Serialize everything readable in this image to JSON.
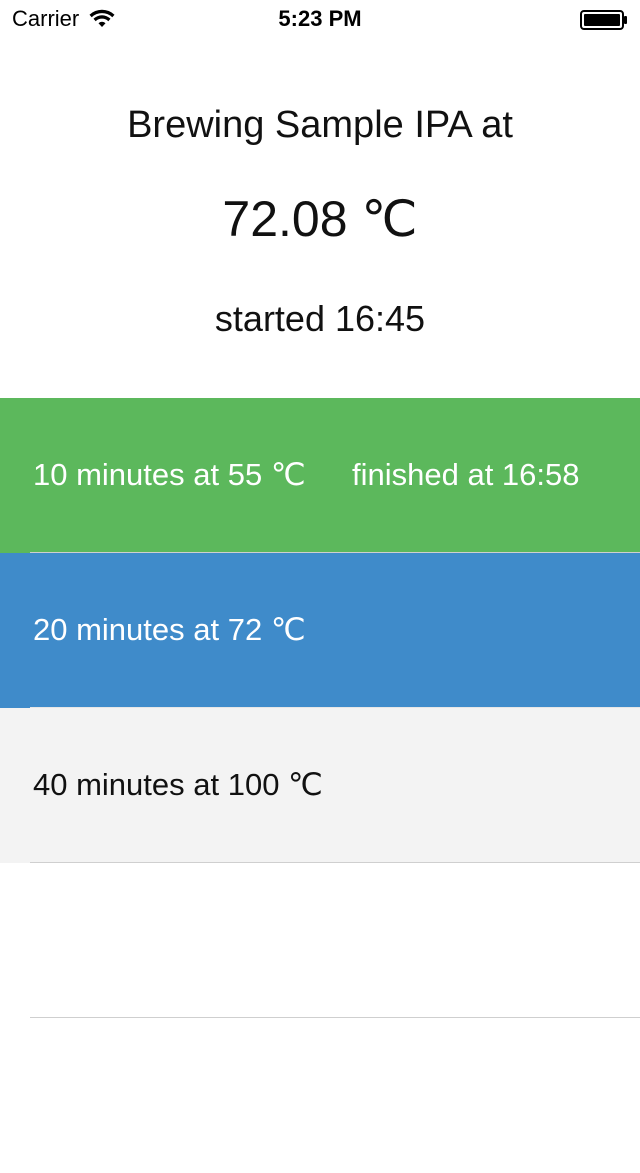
{
  "status_bar": {
    "carrier": "Carrier",
    "time": "5:23 PM"
  },
  "header": {
    "title": "Brewing Sample IPA at",
    "temperature": "72.08 ℃",
    "started": "started 16:45"
  },
  "steps": [
    {
      "label": "10 minutes at  55 ℃",
      "finished": "finished at 16:58",
      "state": "done",
      "color": "#5cb85c"
    },
    {
      "label": "20 minutes at  72 ℃",
      "finished": "",
      "state": "active",
      "color": "#3f8bca"
    },
    {
      "label": "40 minutes at  100 ℃",
      "finished": "",
      "state": "pending",
      "color": "#f3f3f3"
    }
  ]
}
